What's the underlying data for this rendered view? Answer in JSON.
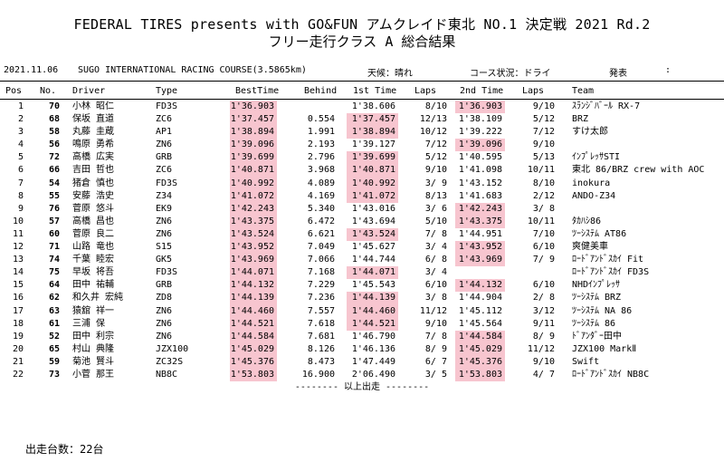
{
  "title": "FEDERAL TIRES presents with GO&FUN アムクレイド東北 NO.1 決定戦 2021 Rd.2",
  "subtitle": "フリー走行クラス A 総合結果",
  "info": {
    "date": "2021.11.06",
    "course": "SUGO INTERNATIONAL RACING COURSE(3.5865km)",
    "weather": "天候：晴れ",
    "course_condition": "コース状況：ドライ",
    "announce": "発表",
    "colon": ":"
  },
  "headers": {
    "pos": "Pos",
    "no": "No.",
    "driver": "Driver",
    "type": "Type",
    "best": "BestTime",
    "behind": "Behind",
    "first": "1st Time",
    "laps1": "Laps",
    "second": "2nd Time",
    "laps2": "Laps",
    "team": "Team"
  },
  "highlight_color": "#f7c5cf",
  "rows": [
    {
      "pos": "1",
      "no": "70",
      "driver": "小林 昭仁",
      "type": "FD3S",
      "best": "1'36.903",
      "behind": "",
      "first": "1'38.606",
      "laps1": "8/10",
      "second": "1'36.903",
      "laps2": "9/10",
      "team": "ｽﾗﾝｼﾞﾊﾞｰﾙ RX-7",
      "hl_first": false,
      "hl_second": true
    },
    {
      "pos": "2",
      "no": "68",
      "driver": "保坂 直道",
      "type": "ZC6",
      "best": "1'37.457",
      "behind": "0.554",
      "first": "1'37.457",
      "laps1": "12/13",
      "second": "1'38.109",
      "laps2": "5/12",
      "team": "BRZ",
      "hl_first": true,
      "hl_second": false
    },
    {
      "pos": "3",
      "no": "58",
      "driver": "丸藤 圭蔵",
      "type": "AP1",
      "best": "1'38.894",
      "behind": "1.991",
      "first": "1'38.894",
      "laps1": "10/12",
      "second": "1'39.222",
      "laps2": "7/12",
      "team": "すけ太郎",
      "hl_first": true,
      "hl_second": false
    },
    {
      "pos": "4",
      "no": "56",
      "driver": "鳴原 勇希",
      "type": "ZN6",
      "best": "1'39.096",
      "behind": "2.193",
      "first": "1'39.127",
      "laps1": "7/12",
      "second": "1'39.096",
      "laps2": "9/10",
      "team": "",
      "hl_first": false,
      "hl_second": true
    },
    {
      "pos": "5",
      "no": "72",
      "driver": "高橋 広実",
      "type": "GRB",
      "best": "1'39.699",
      "behind": "2.796",
      "first": "1'39.699",
      "laps1": "5/12",
      "second": "1'40.595",
      "laps2": "5/13",
      "team": "ｲﾝﾌﾟﾚｯｻSTI",
      "hl_first": true,
      "hl_second": false
    },
    {
      "pos": "6",
      "no": "66",
      "driver": "吉田 哲也",
      "type": "ZC6",
      "best": "1'40.871",
      "behind": "3.968",
      "first": "1'40.871",
      "laps1": "9/10",
      "second": "1'41.098",
      "laps2": "10/11",
      "team": "東北 86/BRZ crew with AOC",
      "hl_first": true,
      "hl_second": false
    },
    {
      "pos": "7",
      "no": "54",
      "driver": "猪倉 慎也",
      "type": "FD3S",
      "best": "1'40.992",
      "behind": "4.089",
      "first": "1'40.992",
      "laps1": "3/ 9",
      "second": "1'43.152",
      "laps2": "8/10",
      "team": "inokura",
      "hl_first": true,
      "hl_second": false
    },
    {
      "pos": "8",
      "no": "55",
      "driver": "安藤 浩史",
      "type": "Z34",
      "best": "1'41.072",
      "behind": "4.169",
      "first": "1'41.072",
      "laps1": "8/13",
      "second": "1'41.683",
      "laps2": "2/12",
      "team": "ANDO-Z34",
      "hl_first": true,
      "hl_second": false
    },
    {
      "pos": "9",
      "no": "76",
      "driver": "菅原 悠斗",
      "type": "EK9",
      "best": "1'42.243",
      "behind": "5.340",
      "first": "1'43.016",
      "laps1": "3/ 6",
      "second": "1'42.243",
      "laps2": "3/ 8",
      "team": "",
      "hl_first": false,
      "hl_second": true
    },
    {
      "pos": "10",
      "no": "57",
      "driver": "高橋 昌也",
      "type": "ZN6",
      "best": "1'43.375",
      "behind": "6.472",
      "first": "1'43.694",
      "laps1": "5/10",
      "second": "1'43.375",
      "laps2": "10/11",
      "team": "ﾀｶﾊｼ86",
      "hl_first": false,
      "hl_second": true
    },
    {
      "pos": "11",
      "no": "60",
      "driver": "菅原 良二",
      "type": "ZN6",
      "best": "1'43.524",
      "behind": "6.621",
      "first": "1'43.524",
      "laps1": "7/ 8",
      "second": "1'44.951",
      "laps2": "7/10",
      "team": "ﾂｰｼｽﾃﾑ AT86",
      "hl_first": true,
      "hl_second": false
    },
    {
      "pos": "12",
      "no": "71",
      "driver": "山路 竜也",
      "type": "S15",
      "best": "1'43.952",
      "behind": "7.049",
      "first": "1'45.627",
      "laps1": "3/ 4",
      "second": "1'43.952",
      "laps2": "6/10",
      "team": "爽健美車",
      "hl_first": false,
      "hl_second": true
    },
    {
      "pos": "13",
      "no": "74",
      "driver": "千葉 睦宏",
      "type": "GK5",
      "best": "1'43.969",
      "behind": "7.066",
      "first": "1'44.744",
      "laps1": "6/ 8",
      "second": "1'43.969",
      "laps2": "7/ 9",
      "team": "ﾛｰﾄﾞｱﾝﾄﾞｽｶｲ Fit",
      "hl_first": false,
      "hl_second": true
    },
    {
      "pos": "14",
      "no": "75",
      "driver": "早坂 将吾",
      "type": "FD3S",
      "best": "1'44.071",
      "behind": "7.168",
      "first": "1'44.071",
      "laps1": "3/ 4",
      "second": "",
      "laps2": "",
      "team": "ﾛｰﾄﾞｱﾝﾄﾞｽｶｲ FD3S",
      "hl_first": true,
      "hl_second": false
    },
    {
      "pos": "15",
      "no": "64",
      "driver": "田中 祐輔",
      "type": "GRB",
      "best": "1'44.132",
      "behind": "7.229",
      "first": "1'45.543",
      "laps1": "6/10",
      "second": "1'44.132",
      "laps2": "6/10",
      "team": "NHDｲﾝﾌﾟﾚｯｻ",
      "hl_first": false,
      "hl_second": true
    },
    {
      "pos": "16",
      "no": "62",
      "driver": "和久井 宏純",
      "type": "ZD8",
      "best": "1'44.139",
      "behind": "7.236",
      "first": "1'44.139",
      "laps1": "3/ 8",
      "second": "1'44.904",
      "laps2": "2/ 8",
      "team": "ﾂｰｼｽﾃﾑ BRZ",
      "hl_first": true,
      "hl_second": false
    },
    {
      "pos": "17",
      "no": "63",
      "driver": "猿舘 祥一",
      "type": "ZN6",
      "best": "1'44.460",
      "behind": "7.557",
      "first": "1'44.460",
      "laps1": "11/12",
      "second": "1'45.112",
      "laps2": "3/12",
      "team": "ﾂｰｼｽﾃﾑ NA 86",
      "hl_first": true,
      "hl_second": false
    },
    {
      "pos": "18",
      "no": "61",
      "driver": "三浦 保",
      "type": "ZN6",
      "best": "1'44.521",
      "behind": "7.618",
      "first": "1'44.521",
      "laps1": "9/10",
      "second": "1'45.564",
      "laps2": "9/11",
      "team": "ﾂｰｼｽﾃﾑ 86",
      "hl_first": true,
      "hl_second": false
    },
    {
      "pos": "19",
      "no": "52",
      "driver": "田中 利宗",
      "type": "ZN6",
      "best": "1'44.584",
      "behind": "7.681",
      "first": "1'46.790",
      "laps1": "7/ 8",
      "second": "1'44.584",
      "laps2": "8/ 9",
      "team": "ﾄﾞｱﾝﾀﾞｰ田中",
      "hl_first": false,
      "hl_second": true
    },
    {
      "pos": "20",
      "no": "65",
      "driver": "村山 典隆",
      "type": "JZX100",
      "best": "1'45.029",
      "behind": "8.126",
      "first": "1'46.136",
      "laps1": "8/ 9",
      "second": "1'45.029",
      "laps2": "11/12",
      "team": "JZX100 MarkⅡ",
      "hl_first": false,
      "hl_second": true
    },
    {
      "pos": "21",
      "no": "59",
      "driver": "菊池 賢斗",
      "type": "ZC32S",
      "best": "1'45.376",
      "behind": "8.473",
      "first": "1'47.449",
      "laps1": "6/ 7",
      "second": "1'45.376",
      "laps2": "9/10",
      "team": "Swift",
      "hl_first": false,
      "hl_second": true
    },
    {
      "pos": "22",
      "no": "73",
      "driver": "小菅 那王",
      "type": "NB8C",
      "best": "1'53.803",
      "behind": "16.900",
      "first": "2'06.490",
      "laps1": "3/ 5",
      "second": "1'53.803",
      "laps2": "4/ 7",
      "team": "ﾛｰﾄﾞｱﾝﾄﾞｽｶｲ NB8C",
      "hl_first": false,
      "hl_second": true
    }
  ],
  "end_marker": "-------- 以上出走 --------",
  "footer": "出走台数：22台"
}
